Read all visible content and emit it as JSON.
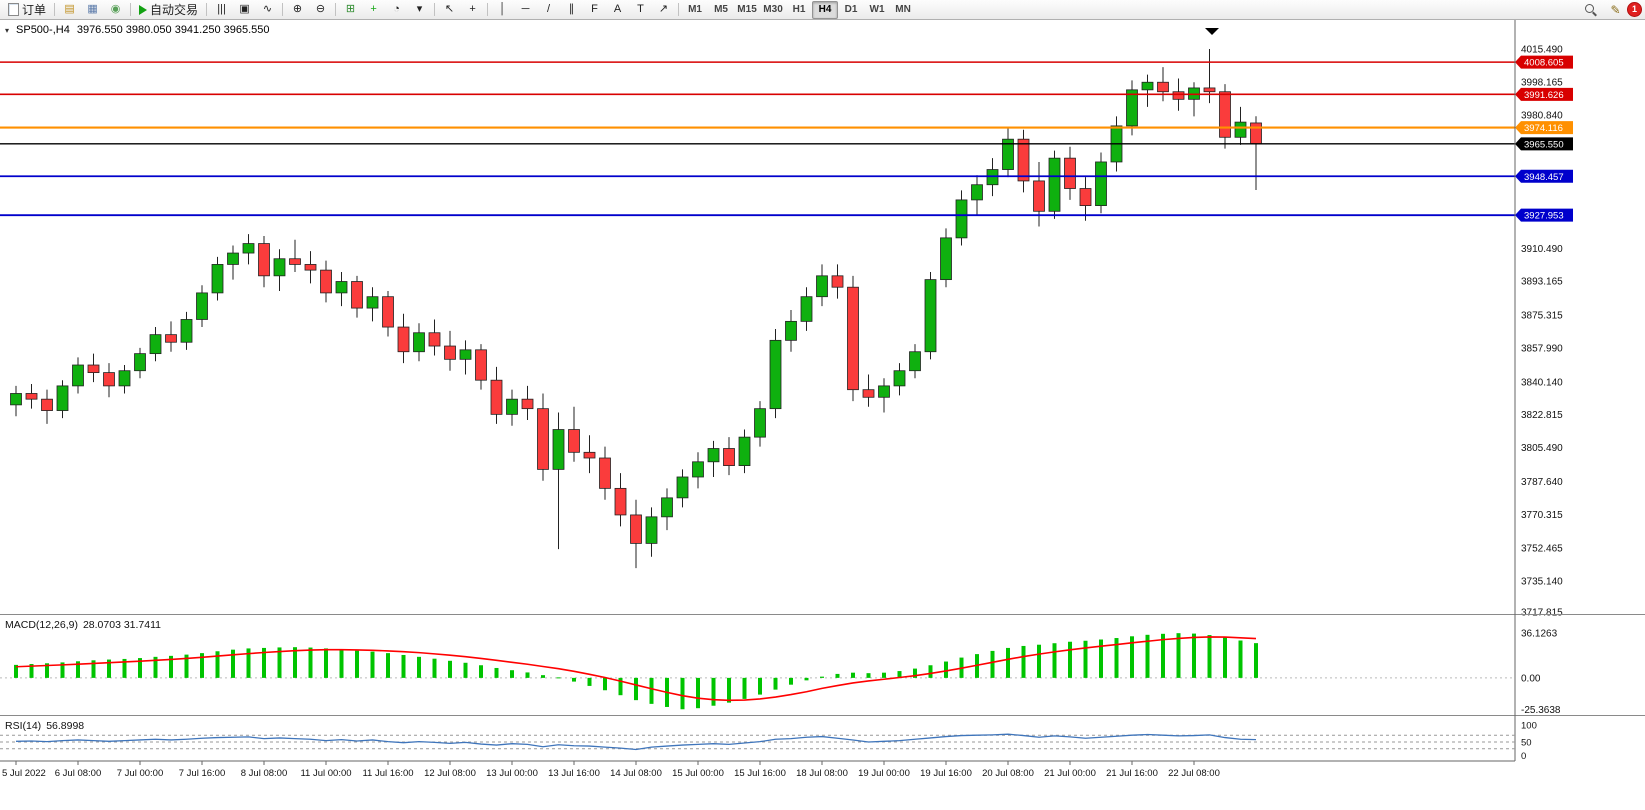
{
  "toolbar": {
    "new_order_label": "订单",
    "left_icons": [
      {
        "name": "market-watch-icon",
        "glyph": "▤",
        "color": "#c09020"
      },
      {
        "name": "chart-window-icon",
        "glyph": "▦",
        "color": "#5878a8"
      },
      {
        "name": "refresh-icon",
        "glyph": "◉",
        "color": "#58a058"
      }
    ],
    "auto_trading_label": "自动交易",
    "chart_tools": [
      {
        "name": "bar-chart-icon",
        "glyph": "|||"
      },
      {
        "name": "candlestick-icon",
        "glyph": "▣"
      },
      {
        "name": "line-chart-icon",
        "glyph": "∿"
      },
      {
        "sep": true
      },
      {
        "name": "zoom-in-icon",
        "glyph": "⊕"
      },
      {
        "name": "zoom-out-icon",
        "glyph": "⊖"
      },
      {
        "sep": true
      },
      {
        "name": "tile-windows-icon",
        "glyph": "⊞",
        "color": "#2e8b2e"
      },
      {
        "name": "indicators-icon",
        "glyph": "+",
        "color": "#18a818"
      },
      {
        "name": "periods-icon",
        "glyph": "◔"
      },
      {
        "name": "templates-icon",
        "glyph": "▾"
      },
      {
        "sep": true
      },
      {
        "name": "cursor-icon",
        "glyph": "↖"
      },
      {
        "name": "crosshair-icon",
        "glyph": "+"
      },
      {
        "sep": true
      },
      {
        "name": "vline-icon",
        "glyph": "│"
      },
      {
        "name": "hline-icon",
        "glyph": "─"
      },
      {
        "name": "trendline-icon",
        "glyph": "/"
      },
      {
        "name": "channel-icon",
        "glyph": "∥"
      },
      {
        "name": "fibonacci-icon",
        "glyph": "F"
      },
      {
        "name": "text-icon",
        "glyph": "A"
      },
      {
        "name": "label-icon",
        "glyph": "T"
      },
      {
        "name": "arrows-icon",
        "glyph": "↗"
      },
      {
        "sep": true
      }
    ],
    "timeframes": {
      "items": [
        "M1",
        "M5",
        "M15",
        "M30",
        "H1",
        "H4",
        "D1",
        "W1",
        "MN"
      ],
      "active": "H4"
    },
    "right_icons": [
      {
        "name": "search-icon",
        "glyph": ""
      },
      {
        "name": "edit-icon",
        "glyph": "✎"
      },
      {
        "name": "notification-badge",
        "label": "1"
      }
    ]
  },
  "chart": {
    "symbol_title": "SP500-,H4",
    "ohlc_text": "3976.550 3980.050 3941.250 3965.550",
    "dropdown_glyph": "▾",
    "candle_up_color": "#0fb00f",
    "candle_down_color": "#fa3c3c",
    "price_axis_labels": [
      "4015.490",
      "3998.165",
      "3980.840",
      "3910.490",
      "3893.165",
      "3875.315",
      "3857.990",
      "3840.140",
      "3822.815",
      "3805.490",
      "3787.640",
      "3770.315",
      "3752.465",
      "3735.140",
      "3717.815"
    ],
    "levels": [
      {
        "price": 4008.605,
        "label": "4008.605",
        "color": "#d80000",
        "width": 1.6
      },
      {
        "price": 3991.626,
        "label": "3991.626",
        "color": "#d80000",
        "width": 1.6
      },
      {
        "price": 3974.116,
        "label": "3974.116",
        "color": "#ff9000",
        "width": 2.2
      },
      {
        "price": 3965.55,
        "label": "3965.550",
        "color": "#000000",
        "width": 1.4
      },
      {
        "price": 3948.457,
        "label": "3948.457",
        "color": "#0000cc",
        "width": 1.8
      },
      {
        "price": 3927.953,
        "label": "3927.953",
        "color": "#0000cc",
        "width": 1.8
      }
    ]
  },
  "macd": {
    "label": "MACD(12,26,9)",
    "values_text": "28.0703 31.7411",
    "axis_labels": [
      "36.1263",
      "0.00",
      "-25.3638"
    ],
    "histogram_color": "#00c400",
    "signal_color": "#ff0000"
  },
  "rsi": {
    "label": "RSI(14)",
    "value_text": "56.8998",
    "axis_labels": [
      "100",
      "50",
      "0"
    ],
    "line_color": "#3f75bb"
  },
  "time_axis": [
    "5 Jul 2022",
    "6 Jul 08:00",
    "7 Jul 00:00",
    "7 Jul 16:00",
    "8 Jul 08:00",
    "11 Jul 00:00",
    "11 Jul 16:00",
    "12 Jul 08:00",
    "13 Jul 00:00",
    "13 Jul 16:00",
    "14 Jul 08:00",
    "15 Jul 00:00",
    "15 Jul 16:00",
    "18 Jul 08:00",
    "19 Jul 00:00",
    "19 Jul 16:00",
    "20 Jul 08:00",
    "21 Jul 00:00",
    "21 Jul 16:00",
    "22 Jul 08:00"
  ],
  "chart_data": {
    "type": "candlestick",
    "symbol": "SP500-",
    "timeframe": "H4",
    "price_range": [
      3717.8,
      4030.8
    ],
    "candles": [
      [
        3828,
        3838,
        3822,
        3834
      ],
      [
        3834,
        3839,
        3826,
        3831
      ],
      [
        3831,
        3836,
        3818,
        3825
      ],
      [
        3825,
        3841,
        3821,
        3838
      ],
      [
        3838,
        3853,
        3834,
        3849
      ],
      [
        3849,
        3855,
        3840,
        3845
      ],
      [
        3845,
        3850,
        3832,
        3838
      ],
      [
        3838,
        3849,
        3834,
        3846
      ],
      [
        3846,
        3858,
        3842,
        3855
      ],
      [
        3855,
        3869,
        3851,
        3865
      ],
      [
        3865,
        3872,
        3856,
        3861
      ],
      [
        3861,
        3877,
        3857,
        3873
      ],
      [
        3873,
        3891,
        3869,
        3887
      ],
      [
        3887,
        3906,
        3883,
        3902
      ],
      [
        3902,
        3912,
        3894,
        3908
      ],
      [
        3908,
        3918,
        3902,
        3913
      ],
      [
        3913,
        3917,
        3890,
        3896
      ],
      [
        3896,
        3910,
        3888,
        3905
      ],
      [
        3905,
        3915,
        3898,
        3902
      ],
      [
        3902,
        3909,
        3892,
        3899
      ],
      [
        3899,
        3904,
        3882,
        3887
      ],
      [
        3887,
        3898,
        3880,
        3893
      ],
      [
        3893,
        3896,
        3874,
        3879
      ],
      [
        3879,
        3890,
        3872,
        3885
      ],
      [
        3885,
        3888,
        3864,
        3869
      ],
      [
        3869,
        3876,
        3850,
        3856
      ],
      [
        3856,
        3871,
        3851,
        3866
      ],
      [
        3866,
        3873,
        3854,
        3859
      ],
      [
        3859,
        3867,
        3846,
        3852
      ],
      [
        3852,
        3862,
        3844,
        3857
      ],
      [
        3857,
        3860,
        3836,
        3841
      ],
      [
        3841,
        3848,
        3818,
        3823
      ],
      [
        3823,
        3836,
        3817,
        3831
      ],
      [
        3831,
        3838,
        3820,
        3826
      ],
      [
        3826,
        3834,
        3788,
        3794
      ],
      [
        3794,
        3824,
        3752,
        3815
      ],
      [
        3815,
        3827,
        3798,
        3803
      ],
      [
        3803,
        3812,
        3792,
        3800
      ],
      [
        3800,
        3806,
        3778,
        3784
      ],
      [
        3784,
        3792,
        3764,
        3770
      ],
      [
        3770,
        3778,
        3742,
        3755
      ],
      [
        3755,
        3774,
        3748,
        3769
      ],
      [
        3769,
        3784,
        3762,
        3779
      ],
      [
        3779,
        3794,
        3774,
        3790
      ],
      [
        3790,
        3803,
        3784,
        3798
      ],
      [
        3798,
        3809,
        3790,
        3805
      ],
      [
        3805,
        3811,
        3791,
        3796
      ],
      [
        3796,
        3815,
        3792,
        3811
      ],
      [
        3811,
        3830,
        3806,
        3826
      ],
      [
        3826,
        3868,
        3821,
        3862
      ],
      [
        3862,
        3878,
        3856,
        3872
      ],
      [
        3872,
        3890,
        3867,
        3885
      ],
      [
        3885,
        3902,
        3880,
        3896
      ],
      [
        3896,
        3902,
        3884,
        3890
      ],
      [
        3890,
        3896,
        3830,
        3836
      ],
      [
        3836,
        3844,
        3827,
        3832
      ],
      [
        3832,
        3842,
        3824,
        3838
      ],
      [
        3838,
        3850,
        3833,
        3846
      ],
      [
        3846,
        3860,
        3842,
        3856
      ],
      [
        3856,
        3898,
        3852,
        3894
      ],
      [
        3894,
        3921,
        3890,
        3916
      ],
      [
        3916,
        3941,
        3912,
        3936
      ],
      [
        3936,
        3949,
        3928,
        3944
      ],
      [
        3944,
        3958,
        3938,
        3952
      ],
      [
        3952,
        3974,
        3948,
        3968
      ],
      [
        3968,
        3973,
        3940,
        3946
      ],
      [
        3946,
        3956,
        3922,
        3930
      ],
      [
        3930,
        3962,
        3926,
        3958
      ],
      [
        3958,
        3964,
        3936,
        3942
      ],
      [
        3942,
        3948,
        3925,
        3933
      ],
      [
        3933,
        3961,
        3929,
        3956
      ],
      [
        3956,
        3980,
        3951,
        3975
      ],
      [
        3975,
        3999,
        3970,
        3994
      ],
      [
        3994,
        4002,
        3985,
        3998
      ],
      [
        3998,
        4006,
        3988,
        3993
      ],
      [
        3993,
        4000,
        3983,
        3989
      ],
      [
        3989,
        3998,
        3980,
        3995
      ],
      [
        3995,
        4015.49,
        3987,
        3993
      ],
      [
        3993,
        3997,
        3963,
        3969
      ],
      [
        3969,
        3985,
        3965,
        3977
      ],
      [
        3976.55,
        3980.05,
        3941.25,
        3965.55
      ]
    ],
    "macd": {
      "range": [
        -30,
        50
      ],
      "histogram": [
        10.5,
        11.2,
        11.8,
        12.5,
        13.4,
        14.2,
        14.8,
        15.3,
        16,
        17,
        17.8,
        18.8,
        20,
        21.5,
        22.8,
        23.8,
        24.2,
        24.6,
        24.8,
        24.5,
        23.8,
        23,
        22,
        21.2,
        20,
        18.5,
        17,
        15.5,
        13.8,
        12.2,
        10.2,
        8,
        6.2,
        4.4,
        2.2,
        0.4,
        -3,
        -6.5,
        -10,
        -14,
        -18,
        -21,
        -23.5,
        -25.36,
        -24.5,
        -22.5,
        -20,
        -17,
        -13.5,
        -9.5,
        -5.5,
        -2,
        1,
        3.2,
        4.2,
        3.8,
        4.2,
        5.5,
        7.5,
        10.2,
        13.2,
        16.4,
        19.2,
        21.8,
        24.2,
        25.8,
        26.8,
        28,
        29.2,
        30,
        31,
        32.2,
        33.6,
        34.8,
        35.6,
        36.13,
        35.8,
        34.6,
        32.6,
        30.2,
        28.07
      ],
      "signal": [
        9,
        9.5,
        10,
        10.5,
        11.1,
        11.7,
        12.3,
        12.9,
        13.5,
        14.2,
        14.9,
        15.7,
        16.6,
        17.6,
        18.6,
        19.6,
        20.5,
        21.3,
        22,
        22.5,
        22.8,
        22.8,
        22.6,
        22.3,
        21.8,
        21.2,
        20.4,
        19.4,
        18.3,
        17.1,
        15.7,
        14.2,
        12.6,
        11,
        9.2,
        7.4,
        5.3,
        2.9,
        0.3,
        -2.6,
        -5.7,
        -8.8,
        -11.7,
        -14.4,
        -16.4,
        -17.6,
        -18.1,
        -17.9,
        -17,
        -15.5,
        -13.5,
        -11.2,
        -8.5,
        -6.2,
        -4.1,
        -2.5,
        -1.1,
        0.3,
        1.8,
        3.6,
        5.6,
        7.8,
        10.2,
        12.6,
        15,
        17.2,
        19.2,
        21,
        22.7,
        24.2,
        25.6,
        26.9,
        28.3,
        29.6,
        30.9,
        31.9,
        32.7,
        33.1,
        33,
        32.4,
        31.74
      ]
    },
    "rsi": {
      "range": [
        0,
        100
      ],
      "levels": [
        70,
        50,
        30
      ],
      "values": [
        52,
        53,
        51,
        54,
        56,
        54,
        52,
        54,
        56,
        58,
        56,
        58,
        61,
        63,
        64,
        65,
        60,
        62,
        60,
        58,
        54,
        57,
        53,
        56,
        51,
        48,
        51,
        49,
        46,
        49,
        44,
        41,
        45,
        43,
        36,
        42,
        39,
        38,
        35,
        32,
        28,
        35,
        38,
        41,
        43,
        45,
        43,
        47,
        51,
        58,
        60,
        64,
        66,
        61,
        56,
        50,
        52,
        54,
        58,
        62,
        66,
        69,
        70,
        71,
        73,
        69,
        64,
        68,
        65,
        61,
        64,
        67,
        70,
        72,
        70,
        68,
        69,
        71,
        63,
        58,
        56.9
      ]
    }
  }
}
